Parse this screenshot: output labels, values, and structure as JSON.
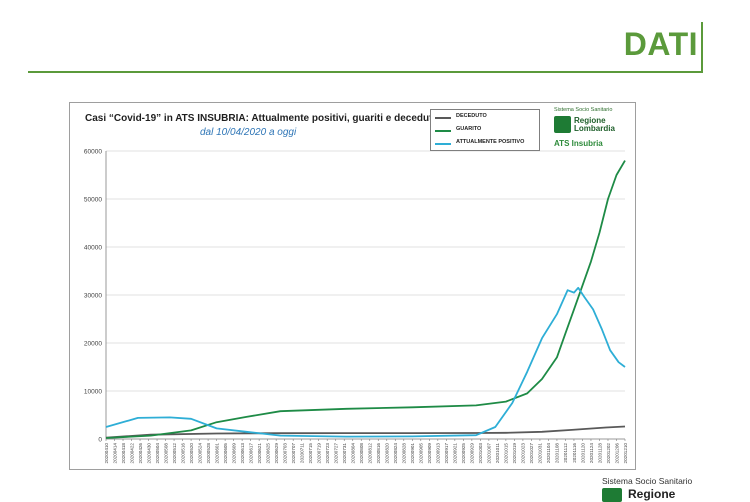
{
  "slide": {
    "title": "DATI"
  },
  "logo": {
    "caption": "Sistema Socio Sanitario",
    "name_line1": "Regione",
    "name_line2": "Lombardia",
    "sub": "ATS Insubria"
  },
  "footer_logo": {
    "caption": "Sistema Socio Sanitario",
    "name": "Regione"
  },
  "colors": {
    "deceduto": "#595959",
    "guarito": "#1e8b46",
    "positivo": "#2eaed6",
    "accent": "#5b9a3b"
  },
  "chart_data": {
    "type": "line",
    "title": "Casi “Covid-19” in ATS INSUBRIA: Attualmente positivi, guariti e deceduti",
    "subtitle": "dal 10/04/2020 a oggi",
    "ylim": [
      0,
      60000
    ],
    "yticks": [
      0,
      10000,
      20000,
      30000,
      40000,
      50000,
      60000
    ],
    "grid": true,
    "legend_placement": "top-right",
    "x_tick_labels": [
      "20200410",
      "20200414",
      "20200418",
      "20200422",
      "20200426",
      "20200430",
      "20200504",
      "20200508",
      "20200512",
      "20200516",
      "20200520",
      "20200524",
      "20200528",
      "20200601",
      "20200605",
      "20200609",
      "20200613",
      "20200617",
      "20200621",
      "20200625",
      "20200629",
      "20200703",
      "20200707",
      "20200711",
      "20200715",
      "20200719",
      "20200723",
      "20200727",
      "20200731",
      "20200804",
      "20200808",
      "20200812",
      "20200816",
      "20200820",
      "20200824",
      "20200828",
      "20200901",
      "20200905",
      "20200909",
      "20200913",
      "20200917",
      "20200921",
      "20200925",
      "20200929",
      "20201003",
      "20201007",
      "20201011",
      "20201015",
      "20201019",
      "20201023",
      "20201027",
      "20201031",
      "20201104",
      "20201108",
      "20201112",
      "20201116",
      "20201120",
      "20201124",
      "20201128",
      "20201202",
      "20201206",
      "20201210"
    ],
    "series": [
      {
        "name": "DECEDUTO",
        "color_key": "deceduto",
        "x": [
          "20200410",
          "20200501",
          "20200601",
          "20200701",
          "20200801",
          "20200901",
          "20201001",
          "20201015",
          "20201101",
          "20201115",
          "20201201",
          "20201210"
        ],
        "y": [
          300,
          900,
          1150,
          1200,
          1220,
          1230,
          1250,
          1300,
          1500,
          1900,
          2400,
          2600
        ]
      },
      {
        "name": "GUARITO",
        "color_key": "guarito",
        "x": [
          "20200410",
          "20200501",
          "20200520",
          "20200601",
          "20200615",
          "20200701",
          "20200801",
          "20200901",
          "20201001",
          "20201015",
          "20201025",
          "20201101",
          "20201108",
          "20201112",
          "20201116",
          "20201120",
          "20201124",
          "20201128",
          "20201202",
          "20201206",
          "20201210"
        ],
        "y": [
          200,
          700,
          1800,
          3500,
          4600,
          5800,
          6300,
          6600,
          7000,
          7800,
          9500,
          12500,
          17000,
          22000,
          27000,
          32000,
          37000,
          43000,
          50000,
          55000,
          58000
        ]
      },
      {
        "name": "ATTUALMENTE POSITIVO",
        "color_key": "positivo",
        "x": [
          "20200410",
          "20200425",
          "20200510",
          "20200520",
          "20200601",
          "20200615",
          "20200701",
          "20200801",
          "20200901",
          "20201001",
          "20201010",
          "20201018",
          "20201025",
          "20201101",
          "20201108",
          "20201113",
          "20201116",
          "20201118",
          "20201121",
          "20201125",
          "20201129",
          "20201203",
          "20201207",
          "20201210"
        ],
        "y": [
          2500,
          4400,
          4500,
          4200,
          2200,
          1500,
          700,
          500,
          550,
          800,
          2500,
          7500,
          14000,
          21000,
          26000,
          31000,
          30500,
          31500,
          29500,
          27000,
          23000,
          18500,
          16000,
          15000
        ]
      }
    ]
  }
}
